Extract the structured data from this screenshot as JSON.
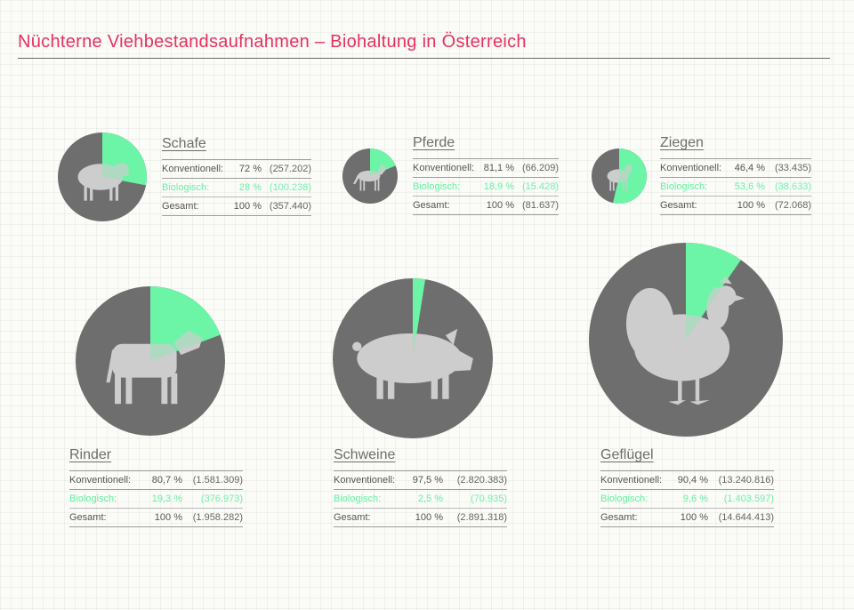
{
  "title": "Nüchterne Viehbestandsaufnahmen – Biohaltung in Österreich",
  "labels": {
    "konv": "Konventionell:",
    "bio": "Biologisch:",
    "gesamt": "Gesamt:"
  },
  "colors": {
    "conventional": "#6e6e6e",
    "bio": "#6cf5a6",
    "silhouette": "#cdcdcd",
    "title": "#e8315f"
  },
  "chart_data": [
    {
      "type": "pie",
      "title": "Schafe",
      "series": [
        {
          "name": "Konventionell",
          "value": 72,
          "pct_label": "72 %",
          "count": "(257.202)"
        },
        {
          "name": "Biologisch",
          "value": 28,
          "pct_label": "28 %",
          "count": "(100.238)"
        }
      ],
      "total": {
        "pct_label": "100 %",
        "count": "(357.440)"
      },
      "icon": "sheep-icon"
    },
    {
      "type": "pie",
      "title": "Pferde",
      "series": [
        {
          "name": "Konventionell",
          "value": 81.1,
          "pct_label": "81,1 %",
          "count": "(66.209)"
        },
        {
          "name": "Biologisch",
          "value": 18.9,
          "pct_label": "18,9 %",
          "count": "(15.428)"
        }
      ],
      "total": {
        "pct_label": "100 %",
        "count": "(81.637)"
      },
      "icon": "horse-icon"
    },
    {
      "type": "pie",
      "title": "Ziegen",
      "series": [
        {
          "name": "Konventionell",
          "value": 46.4,
          "pct_label": "46,4 %",
          "count": "(33.435)"
        },
        {
          "name": "Biologisch",
          "value": 53.6,
          "pct_label": "53,6 %",
          "count": "(38.633)"
        }
      ],
      "total": {
        "pct_label": "100 %",
        "count": "(72.068)"
      },
      "icon": "goat-icon"
    },
    {
      "type": "pie",
      "title": "Rinder",
      "series": [
        {
          "name": "Konventionell",
          "value": 80.7,
          "pct_label": "80,7 %",
          "count": "(1.581.309)"
        },
        {
          "name": "Biologisch",
          "value": 19.3,
          "pct_label": "19,3 %",
          "count": "(376.973)"
        }
      ],
      "total": {
        "pct_label": "100 %",
        "count": "(1.958.282)"
      },
      "icon": "cow-icon"
    },
    {
      "type": "pie",
      "title": "Schweine",
      "series": [
        {
          "name": "Konventionell",
          "value": 97.5,
          "pct_label": "97,5 %",
          "count": "(2.820.383)"
        },
        {
          "name": "Biologisch",
          "value": 2.5,
          "pct_label": "2,5 %",
          "count": "(70.935)"
        }
      ],
      "total": {
        "pct_label": "100 %",
        "count": "(2.891.318)"
      },
      "icon": "pig-icon"
    },
    {
      "type": "pie",
      "title": "Geflügel",
      "series": [
        {
          "name": "Konventionell",
          "value": 90.4,
          "pct_label": "90,4 %",
          "count": "(13.240.816)"
        },
        {
          "name": "Biologisch",
          "value": 9.6,
          "pct_label": "9,6 %",
          "count": "(1.403.597)"
        }
      ],
      "total": {
        "pct_label": "100 %",
        "count": "(14.644.413)"
      },
      "icon": "chicken-icon"
    }
  ]
}
